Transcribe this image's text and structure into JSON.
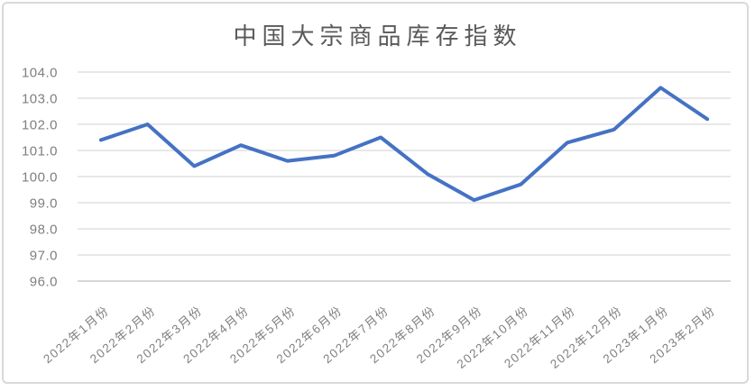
{
  "chart_data": {
    "type": "line",
    "title": "中国大宗商品库存指数",
    "categories": [
      "2022年1月份",
      "2022年2月份",
      "2022年3月份",
      "2022年4月份",
      "2022年5月份",
      "2022年6月份",
      "2022年7月份",
      "2022年8月份",
      "2022年9月份",
      "2022年10月份",
      "2022年11月份",
      "2022年12月份",
      "2023年1月份",
      "2023年2月份"
    ],
    "values": [
      101.4,
      102.0,
      100.4,
      101.2,
      100.6,
      100.8,
      101.5,
      100.1,
      99.1,
      99.7,
      101.3,
      101.8,
      103.4,
      102.2
    ],
    "xlabel": "",
    "ylabel": "",
    "ylim": [
      96.0,
      104.0
    ],
    "ytick_step": 1.0,
    "ytick_labels": [
      "104.0",
      "103.0",
      "102.0",
      "101.0",
      "100.0",
      "99.0",
      "98.0",
      "97.0",
      "96.0"
    ],
    "grid": true,
    "legend": false,
    "x_label_rotation_deg": -40
  },
  "colors": {
    "background": "#FFFFFF",
    "border": "#D9D9D9",
    "gridline": "#D9D9D9",
    "axis_line": "#BFBFBF",
    "title_text": "#595959",
    "tick_text": "#7F7F7F",
    "series_line": "#4472C4"
  }
}
